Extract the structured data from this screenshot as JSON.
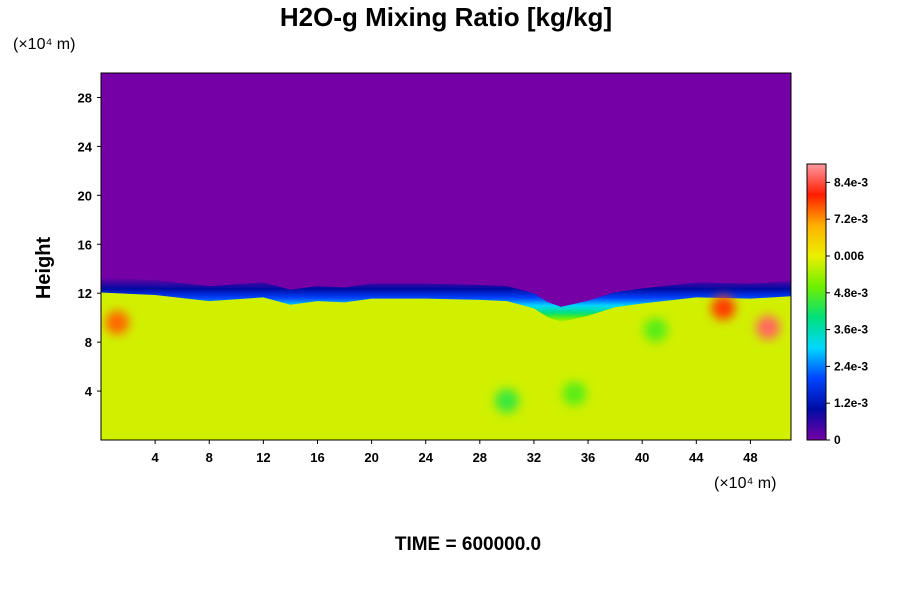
{
  "chart_data": {
    "type": "heatmap",
    "title": "H2O-g Mixing Ratio [kg/kg]",
    "ylabel": "Height",
    "x_unit_label": "(×10⁴ m)",
    "y_unit_label": "(×10⁴ m)",
    "xlim": [
      0,
      51
    ],
    "ylim": [
      0,
      30
    ],
    "x_ticks": [
      4,
      8,
      12,
      16,
      20,
      24,
      28,
      32,
      36,
      40,
      44,
      48
    ],
    "y_ticks": [
      4,
      8,
      12,
      16,
      20,
      24,
      28
    ],
    "colorbar": {
      "range": [
        0,
        0.009
      ],
      "tick_values": [
        0,
        0.0012,
        0.0024,
        0.0036,
        0.0048,
        0.006,
        0.0072,
        0.0084
      ],
      "tick_labels": [
        "0",
        "1.2e-3",
        "2.4e-3",
        "3.6e-3",
        "4.8e-3",
        "0.006",
        "7.2e-3",
        "8.4e-3"
      ]
    },
    "field": {
      "upper_value": 0,
      "lower_value": 0.0058,
      "moist_layer_top_profile": {
        "x": [
          0,
          4,
          8,
          12,
          14,
          16,
          18,
          20,
          24,
          28,
          30,
          32,
          33,
          34,
          36,
          38,
          40,
          44,
          48,
          51
        ],
        "y": [
          12.3,
          12.1,
          11.6,
          11.9,
          11.3,
          11.6,
          11.5,
          11.8,
          11.8,
          11.7,
          11.6,
          11.0,
          10.3,
          9.9,
          10.4,
          11.1,
          11.4,
          11.9,
          11.8,
          12.0
        ]
      },
      "features": [
        {
          "x": 49.3,
          "y": 9.2,
          "value": 0.0086
        },
        {
          "x": 46.0,
          "y": 10.8,
          "value": 0.0078
        },
        {
          "x": 1.2,
          "y": 9.6,
          "value": 0.0075
        },
        {
          "x": 30.0,
          "y": 3.2,
          "value": 0.0045
        },
        {
          "x": 35.0,
          "y": 3.8,
          "value": 0.0048
        },
        {
          "x": 41.0,
          "y": 9.0,
          "value": 0.0048
        }
      ]
    },
    "annotation": "TIME = 600000.0"
  },
  "colors": {
    "scale": [
      "#7500a6",
      "#000ba3",
      "#0043ff",
      "#00d7ff",
      "#00e07a",
      "#6ef000",
      "#eaf000",
      "#ffb000",
      "#ff1c00",
      "#ff9aa0"
    ]
  }
}
